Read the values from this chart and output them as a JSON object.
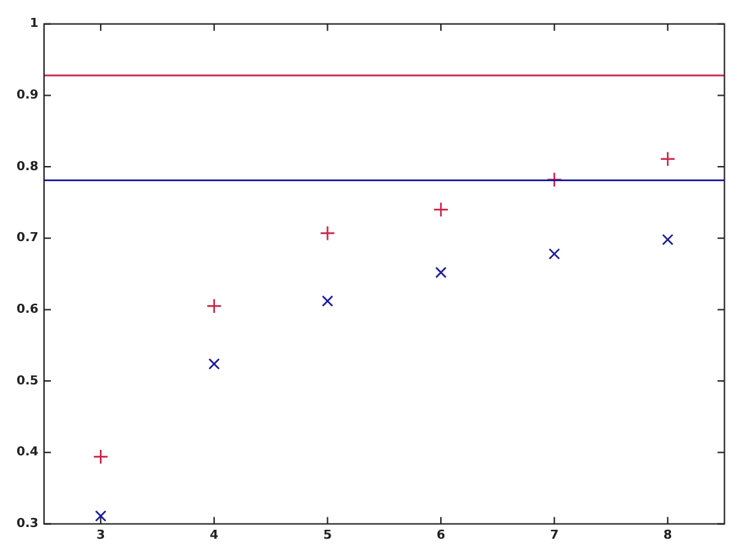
{
  "chart_data": {
    "type": "scatter",
    "x": [
      3,
      4,
      5,
      6,
      7,
      8
    ],
    "series": [
      {
        "color": "#cc2244",
        "marker": "cross",
        "values": [
          0.394,
          0.605,
          0.707,
          0.74,
          0.782,
          0.811
        ]
      },
      {
        "color": "#1a1aa0",
        "marker": "x",
        "values": [
          0.311,
          0.524,
          0.612,
          0.652,
          0.678,
          0.698
        ]
      }
    ],
    "ref_lines": [
      {
        "axis": "y",
        "value": 0.928,
        "color": "#cc2244"
      },
      {
        "axis": "y",
        "value": 0.781,
        "color": "#1a1aa0"
      }
    ],
    "xlim": [
      2.5,
      8.5
    ],
    "xticks": [
      3,
      4,
      5,
      6,
      7,
      8
    ],
    "ylim": [
      0.3,
      1
    ],
    "yticks": [
      0.3,
      0.4,
      0.5,
      0.6,
      0.7,
      0.8,
      0.9,
      1
    ],
    "grid": false,
    "legend": false
  }
}
